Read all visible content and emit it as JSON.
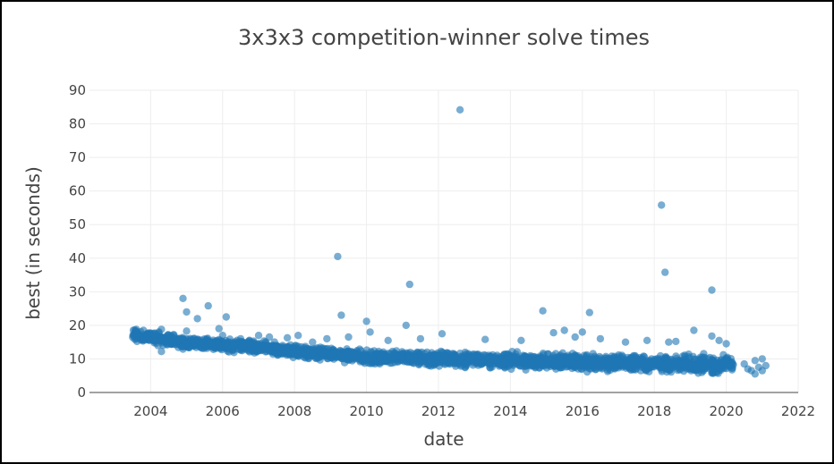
{
  "chart_data": {
    "type": "scatter",
    "title": "3x3x3 competition-winner solve times",
    "xlabel": "date",
    "ylabel": "best (in seconds)",
    "xlim": [
      2002.3,
      2022
    ],
    "ylim": [
      0,
      90
    ],
    "xticks": [
      "2004",
      "2006",
      "2008",
      "2010",
      "2012",
      "2014",
      "2016",
      "2018",
      "2020",
      "2022"
    ],
    "yticks": [
      "0",
      "10",
      "20",
      "30",
      "40",
      "50",
      "60",
      "70",
      "80",
      "90"
    ],
    "grid": true,
    "legend": "none",
    "marker_color": "#1f77b4",
    "dense_band": [
      {
        "x": 2003.5,
        "low": 15.0,
        "high": 19.5
      },
      {
        "x": 2005.0,
        "low": 12.5,
        "high": 17.0
      },
      {
        "x": 2006.0,
        "low": 12.0,
        "high": 16.5
      },
      {
        "x": 2007.0,
        "low": 11.0,
        "high": 16.0
      },
      {
        "x": 2008.0,
        "low": 10.0,
        "high": 14.5
      },
      {
        "x": 2009.0,
        "low": 9.0,
        "high": 14.0
      },
      {
        "x": 2010.0,
        "low": 8.0,
        "high": 13.5
      },
      {
        "x": 2011.0,
        "low": 7.5,
        "high": 13.0
      },
      {
        "x": 2012.0,
        "low": 7.0,
        "high": 13.0
      },
      {
        "x": 2013.0,
        "low": 7.0,
        "high": 12.5
      },
      {
        "x": 2014.0,
        "low": 6.5,
        "high": 12.5
      },
      {
        "x": 2015.0,
        "low": 6.0,
        "high": 12.5
      },
      {
        "x": 2016.0,
        "low": 5.8,
        "high": 12.5
      },
      {
        "x": 2017.0,
        "low": 5.5,
        "high": 12.0
      },
      {
        "x": 2018.0,
        "low": 5.3,
        "high": 12.0
      },
      {
        "x": 2019.0,
        "low": 5.0,
        "high": 12.0
      },
      {
        "x": 2020.2,
        "low": 5.0,
        "high": 11.5
      }
    ],
    "points": [
      {
        "x": 2003.6,
        "y": 18.8
      },
      {
        "x": 2003.8,
        "y": 18.5
      },
      {
        "x": 2004.1,
        "y": 14.8
      },
      {
        "x": 2004.3,
        "y": 12.2
      },
      {
        "x": 2004.3,
        "y": 18.8
      },
      {
        "x": 2004.5,
        "y": 16.0
      },
      {
        "x": 2004.6,
        "y": 14.5
      },
      {
        "x": 2004.8,
        "y": 15.5
      },
      {
        "x": 2004.9,
        "y": 28.0
      },
      {
        "x": 2005.0,
        "y": 24.0
      },
      {
        "x": 2005.0,
        "y": 18.3
      },
      {
        "x": 2005.2,
        "y": 13.8
      },
      {
        "x": 2005.3,
        "y": 22.0
      },
      {
        "x": 2005.4,
        "y": 15.0
      },
      {
        "x": 2005.6,
        "y": 25.8
      },
      {
        "x": 2005.7,
        "y": 15.0
      },
      {
        "x": 2005.9,
        "y": 19.0
      },
      {
        "x": 2006.0,
        "y": 17.0
      },
      {
        "x": 2006.1,
        "y": 22.5
      },
      {
        "x": 2006.3,
        "y": 14.0
      },
      {
        "x": 2006.5,
        "y": 16.0
      },
      {
        "x": 2006.7,
        "y": 13.5
      },
      {
        "x": 2007.0,
        "y": 17.0
      },
      {
        "x": 2007.3,
        "y": 16.5
      },
      {
        "x": 2007.8,
        "y": 16.3
      },
      {
        "x": 2008.1,
        "y": 17.0
      },
      {
        "x": 2008.5,
        "y": 15.0
      },
      {
        "x": 2008.9,
        "y": 16.0
      },
      {
        "x": 2009.2,
        "y": 40.5
      },
      {
        "x": 2009.3,
        "y": 23.0
      },
      {
        "x": 2009.5,
        "y": 16.5
      },
      {
        "x": 2010.0,
        "y": 21.2
      },
      {
        "x": 2010.1,
        "y": 18.0
      },
      {
        "x": 2010.6,
        "y": 15.5
      },
      {
        "x": 2011.1,
        "y": 20.0
      },
      {
        "x": 2011.2,
        "y": 32.2
      },
      {
        "x": 2011.5,
        "y": 16.0
      },
      {
        "x": 2012.1,
        "y": 17.5
      },
      {
        "x": 2012.6,
        "y": 84.2
      },
      {
        "x": 2013.3,
        "y": 15.8
      },
      {
        "x": 2014.3,
        "y": 15.5
      },
      {
        "x": 2014.9,
        "y": 24.3
      },
      {
        "x": 2015.2,
        "y": 17.8
      },
      {
        "x": 2015.5,
        "y": 18.5
      },
      {
        "x": 2015.8,
        "y": 16.5
      },
      {
        "x": 2016.0,
        "y": 18.0
      },
      {
        "x": 2016.2,
        "y": 23.8
      },
      {
        "x": 2016.5,
        "y": 16.0
      },
      {
        "x": 2017.2,
        "y": 15.0
      },
      {
        "x": 2017.8,
        "y": 15.5
      },
      {
        "x": 2018.2,
        "y": 55.8
      },
      {
        "x": 2018.3,
        "y": 35.8
      },
      {
        "x": 2018.4,
        "y": 15.0
      },
      {
        "x": 2018.6,
        "y": 15.2
      },
      {
        "x": 2019.1,
        "y": 18.5
      },
      {
        "x": 2019.6,
        "y": 30.5
      },
      {
        "x": 2019.6,
        "y": 16.8
      },
      {
        "x": 2019.8,
        "y": 15.5
      },
      {
        "x": 2020.0,
        "y": 14.5
      },
      {
        "x": 2020.5,
        "y": 8.5
      },
      {
        "x": 2020.6,
        "y": 7.0
      },
      {
        "x": 2020.7,
        "y": 6.5
      },
      {
        "x": 2020.8,
        "y": 9.5
      },
      {
        "x": 2020.8,
        "y": 5.5
      },
      {
        "x": 2020.9,
        "y": 7.5
      },
      {
        "x": 2021.0,
        "y": 10.0
      },
      {
        "x": 2021.0,
        "y": 6.5
      },
      {
        "x": 2021.1,
        "y": 8.0
      }
    ]
  }
}
